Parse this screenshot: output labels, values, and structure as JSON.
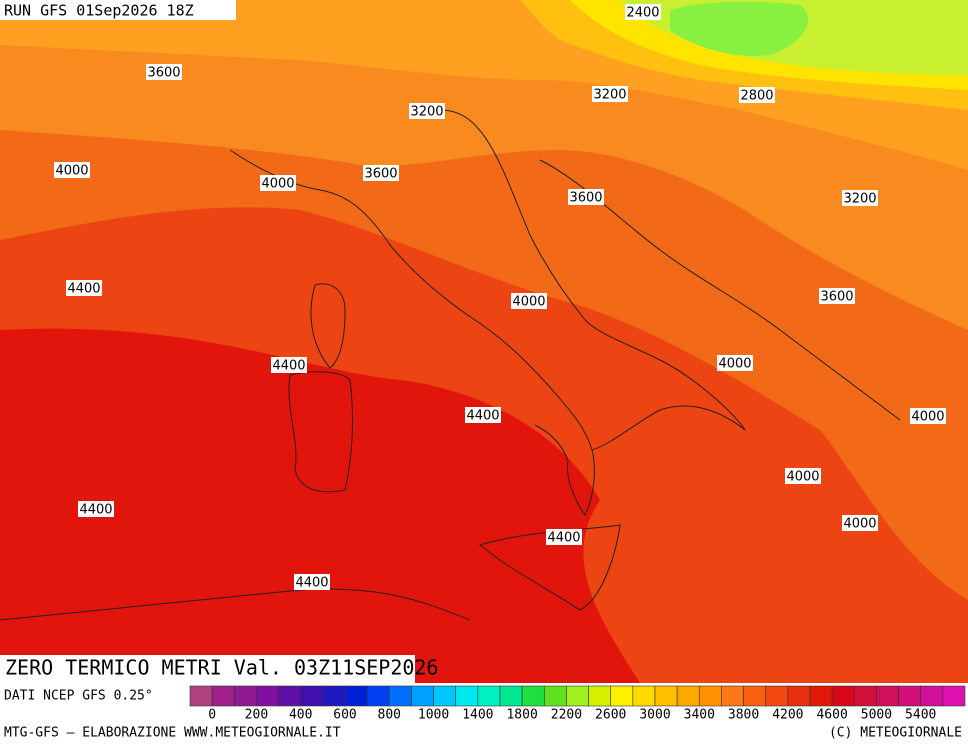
{
  "header": {
    "run": "RUN GFS 01Sep2026 18Z"
  },
  "map": {
    "contour_labels": [
      2400,
      3600,
      3200,
      3200,
      2800,
      4000,
      4000,
      3600,
      3600,
      3200,
      4400,
      4000,
      3600,
      4400,
      4000,
      4400,
      4000,
      4000,
      4400,
      4000,
      4400,
      4400
    ]
  },
  "footer": {
    "title": "ZERO TERMICO METRI Val. 03Z11SEP2026",
    "source": "DATI NCEP GFS 0.25°",
    "credit": "MTG-GFS — ELABORAZIONE WWW.METEOGIORNALE.IT",
    "copyright": "(C) METEOGIORNALE"
  },
  "colorbar": {
    "colors": [
      "#b04080",
      "#a0208a",
      "#901890",
      "#8010a0",
      "#6010a8",
      "#4010b0",
      "#2018c0",
      "#0020d8",
      "#0040f0",
      "#0070ff",
      "#00a0ff",
      "#00c8ff",
      "#00e8f0",
      "#00f0c0",
      "#00e890",
      "#20e040",
      "#60e020",
      "#a0f020",
      "#d8f000",
      "#fff000",
      "#ffd800",
      "#ffc000",
      "#ffa800",
      "#ff9000",
      "#ff7818",
      "#f86010",
      "#f04810",
      "#e83010",
      "#e01808",
      "#d80818",
      "#d01038",
      "#d01058",
      "#d01078",
      "#d01098",
      "#e010b0"
    ],
    "labels": [
      0,
      200,
      400,
      600,
      800,
      1000,
      1400,
      1800,
      2200,
      2600,
      3000,
      3400,
      3800,
      4200,
      4600,
      5000,
      5400
    ]
  }
}
